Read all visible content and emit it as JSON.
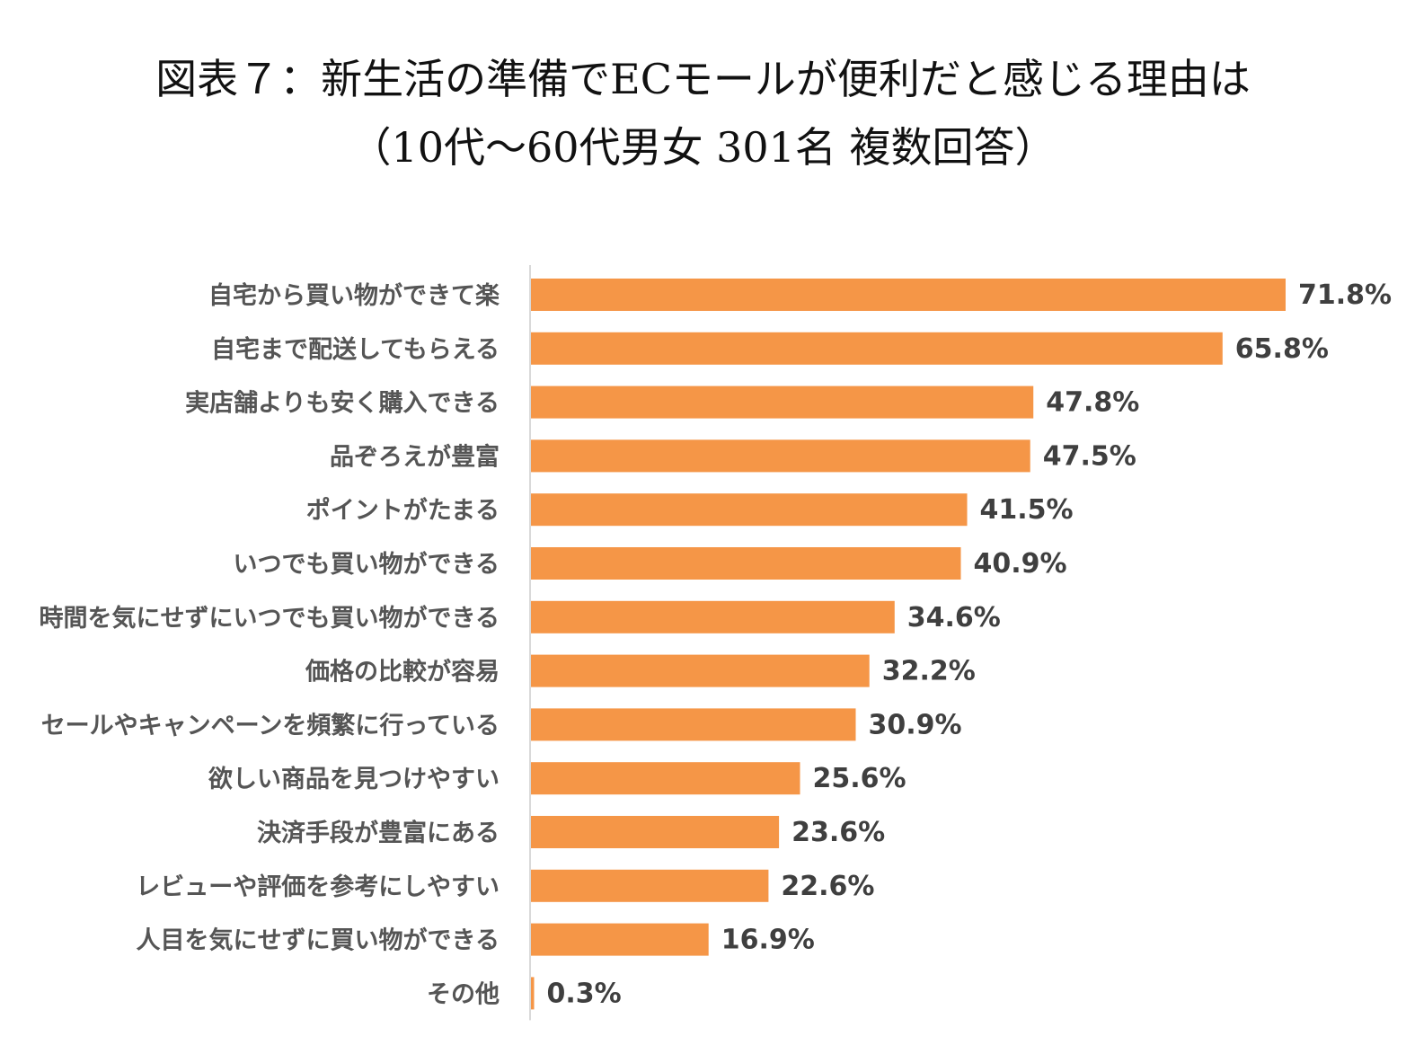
{
  "title_line1": "図表７：新生活の準備でECモールが便利だと感じる理由は",
  "title_line2": "（10代～60代男女 301名 複数回答）",
  "colors": {
    "bar": "#f59647",
    "axis": "#d9d9d9"
  },
  "chart_data": {
    "type": "bar",
    "orientation": "horizontal",
    "title": "図表７：新生活の準備でECモールが便利だと感じる理由は",
    "subtitle": "（10代～60代男女 301名 複数回答）",
    "categories": [
      "自宅から買い物ができて楽",
      "自宅まで配送してもらえる",
      "実店舗よりも安く購入できる",
      "品ぞろえが豊富",
      "ポイントがたまる",
      "いつでも買い物ができる",
      "時間を気にせずにいつでも買い物ができる",
      "価格の比較が容易",
      "セールやキャンペーンを頻繁に行っている",
      "欲しい商品を見つけやすい",
      "決済手段が豊富にある",
      "レビューや評価を参考にしやすい",
      "人目を気にせずに買い物ができる",
      "その他"
    ],
    "values": [
      71.8,
      65.8,
      47.8,
      47.5,
      41.5,
      40.9,
      34.6,
      32.2,
      30.9,
      25.6,
      23.6,
      22.6,
      16.9,
      0.3
    ],
    "value_labels": [
      "71.8%",
      "65.8%",
      "47.8%",
      "47.5%",
      "41.5%",
      "40.9%",
      "34.6%",
      "32.2%",
      "30.9%",
      "25.6%",
      "23.6%",
      "22.6%",
      "16.9%",
      "0.3%"
    ],
    "unit": "%",
    "xlim": [
      0,
      71.8
    ],
    "grid": false,
    "legend": "none"
  }
}
